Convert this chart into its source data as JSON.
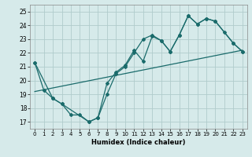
{
  "title": "",
  "xlabel": "Humidex (Indice chaleur)",
  "xlim": [
    -0.5,
    23.5
  ],
  "ylim": [
    16.5,
    25.5
  ],
  "yticks": [
    17,
    18,
    19,
    20,
    21,
    22,
    23,
    24,
    25
  ],
  "xticks": [
    0,
    1,
    2,
    3,
    4,
    5,
    6,
    7,
    8,
    9,
    10,
    11,
    12,
    13,
    14,
    15,
    16,
    17,
    18,
    19,
    20,
    21,
    22,
    23
  ],
  "bg_color": "#d6eaea",
  "grid_color": "#b0cccc",
  "line_color": "#1a6b6b",
  "series1": {
    "x": [
      0,
      1,
      2,
      3,
      4,
      5,
      6,
      7,
      8,
      9,
      10,
      11,
      12,
      13,
      14,
      15,
      16,
      17,
      18,
      19,
      20,
      21,
      22,
      23
    ],
    "y": [
      21.3,
      19.3,
      18.7,
      18.3,
      17.5,
      17.5,
      17.0,
      17.3,
      19.0,
      20.5,
      21.0,
      22.0,
      23.0,
      23.3,
      22.9,
      22.1,
      23.3,
      24.7,
      24.1,
      24.5,
      24.3,
      23.5,
      22.7,
      22.1
    ]
  },
  "series2": {
    "x": [
      0,
      2,
      3,
      6,
      7,
      8,
      9,
      10,
      11,
      12,
      13,
      14,
      15,
      16,
      17,
      18,
      19,
      20,
      22,
      23
    ],
    "y": [
      21.3,
      18.7,
      18.3,
      17.0,
      17.3,
      19.8,
      20.6,
      21.1,
      22.2,
      21.4,
      23.2,
      22.9,
      22.1,
      23.3,
      24.7,
      24.1,
      24.5,
      24.3,
      22.7,
      22.1
    ]
  },
  "regression_line": {
    "x": [
      0,
      23
    ],
    "y": [
      19.2,
      22.2
    ]
  }
}
